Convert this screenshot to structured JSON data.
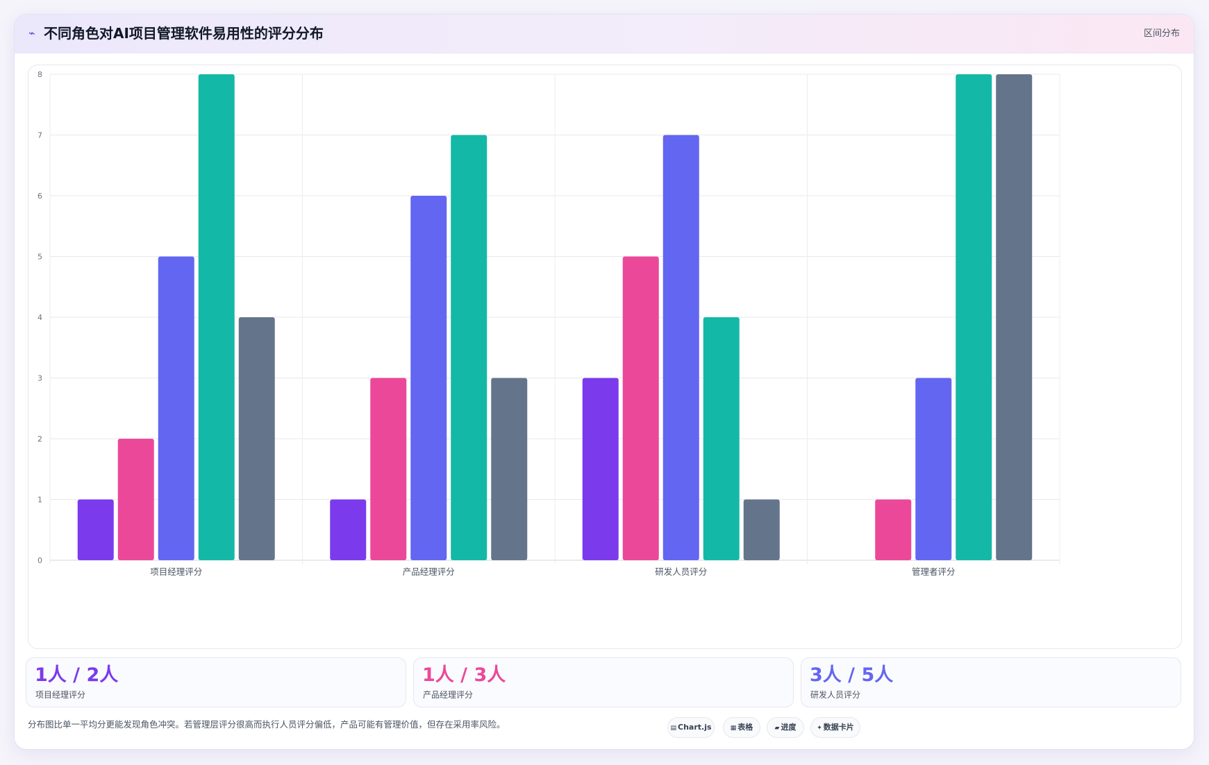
{
  "header": {
    "icon": "chart-trend-icon",
    "title": "不同角色对AI项目管理软件易用性的评分分布",
    "mode_label": "区间分布"
  },
  "chart_data": {
    "type": "bar",
    "categories": [
      "项目经理评分",
      "产品经理评分",
      "研发人员评分",
      "管理者评分"
    ],
    "series": [
      {
        "color": "#7c3aed",
        "values": [
          1,
          1,
          3,
          0
        ]
      },
      {
        "color": "#ec4899",
        "values": [
          2,
          3,
          5,
          1
        ]
      },
      {
        "color": "#6366f1",
        "values": [
          5,
          6,
          7,
          3
        ]
      },
      {
        "color": "#14b8a6",
        "values": [
          8,
          7,
          4,
          8
        ]
      },
      {
        "color": "#64748b",
        "values": [
          4,
          3,
          1,
          8
        ]
      }
    ],
    "yticks": [
      "0",
      "1",
      "2",
      "3",
      "4",
      "5",
      "6",
      "7",
      "8"
    ],
    "ylim": [
      0,
      8
    ],
    "grid": true,
    "legend": "none"
  },
  "stats": [
    {
      "value": "1人 / 2人",
      "label": "项目经理评分",
      "color": "#7c3aed"
    },
    {
      "value": "1人 / 3人",
      "label": "产品经理评分",
      "color": "#ec4899"
    },
    {
      "value": "3人 / 5人",
      "label": "研发人员评分",
      "color": "#6366f1"
    }
  ],
  "footnote": "分布图比单一平均分更能发现角色冲突。若管理层评分很高而执行人员评分偏低，产品可能有管理价值，但存在采用率风险。",
  "tags": [
    {
      "icon": "chart-icon",
      "glyph": "▤",
      "label": "Chart.js"
    },
    {
      "icon": "table-icon",
      "glyph": "▦",
      "label": "表格"
    },
    {
      "icon": "progress-icon",
      "glyph": "▰",
      "label": "进度"
    },
    {
      "icon": "card-icon",
      "glyph": "✦",
      "label": "数据卡片"
    }
  ]
}
